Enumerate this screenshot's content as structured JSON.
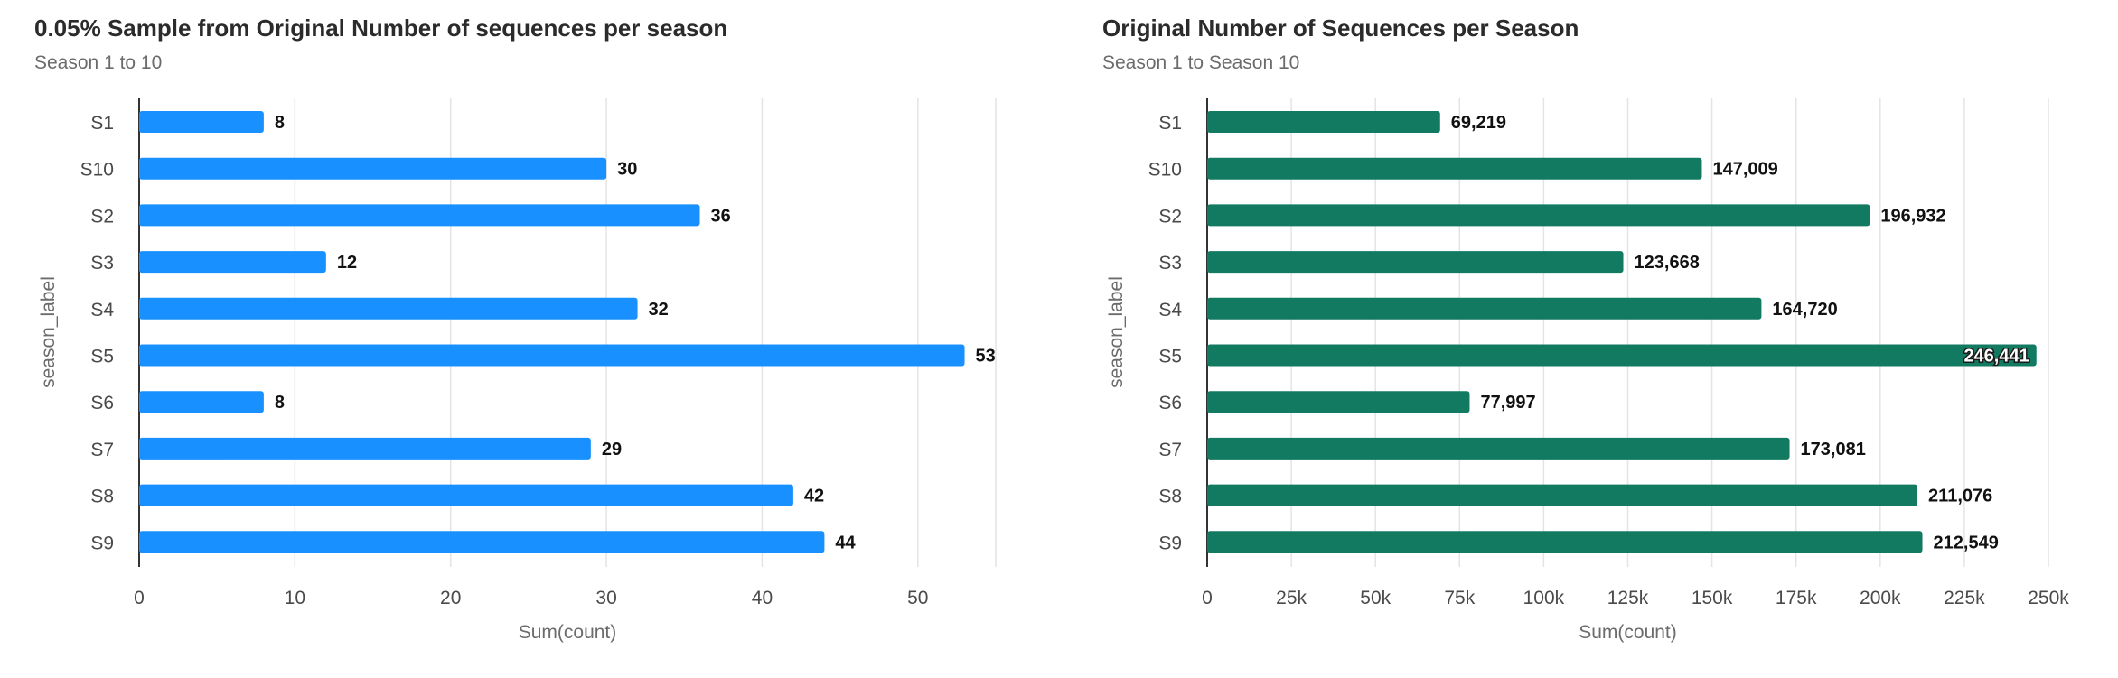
{
  "chart_data": [
    {
      "type": "bar",
      "orientation": "horizontal",
      "title": "0.05% Sample from Original Number of sequences per season",
      "subtitle": "Season 1 to 10",
      "xlabel": "Sum(count)",
      "ylabel": "season_label",
      "categories": [
        "S1",
        "S10",
        "S2",
        "S3",
        "S4",
        "S5",
        "S6",
        "S7",
        "S8",
        "S9"
      ],
      "values": [
        8,
        30,
        36,
        12,
        32,
        53,
        8,
        29,
        42,
        44
      ],
      "value_labels": [
        "8",
        "30",
        "36",
        "12",
        "32",
        "53",
        "8",
        "29",
        "42",
        "44"
      ],
      "xlim": [
        0,
        55
      ],
      "xticks": [
        0,
        10,
        20,
        30,
        40,
        50
      ],
      "xtick_labels": [
        "0",
        "10",
        "20",
        "30",
        "40",
        "50"
      ],
      "bar_color": "#1890ff",
      "grid": "vertical"
    },
    {
      "type": "bar",
      "orientation": "horizontal",
      "title": "Original Number of Sequences per Season",
      "subtitle": "Season 1 to Season 10",
      "xlabel": "Sum(count)",
      "ylabel": "season_label",
      "categories": [
        "S1",
        "S10",
        "S2",
        "S3",
        "S4",
        "S5",
        "S6",
        "S7",
        "S8",
        "S9"
      ],
      "values": [
        69219,
        147009,
        196932,
        123668,
        164720,
        246441,
        77997,
        173081,
        211076,
        212549
      ],
      "value_labels": [
        "69,219",
        "147,009",
        "196,932",
        "123,668",
        "164,720",
        "246,441",
        "77,997",
        "173,081",
        "211,076",
        "212,549"
      ],
      "xlim": [
        0,
        250000
      ],
      "xticks": [
        0,
        25000,
        50000,
        75000,
        100000,
        125000,
        150000,
        175000,
        200000,
        225000,
        250000
      ],
      "xtick_labels": [
        "0",
        "25k",
        "50k",
        "75k",
        "100k",
        "125k",
        "150k",
        "175k",
        "200k",
        "225k",
        "250k"
      ],
      "bar_color": "#137a62",
      "grid": "vertical"
    }
  ]
}
